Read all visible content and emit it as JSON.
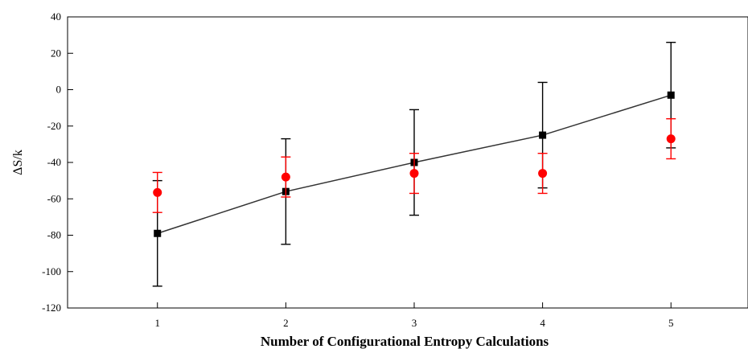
{
  "chart_data": {
    "type": "scatter",
    "xlabel": "Number of Configurational Entropy Calculations",
    "ylabel": "ΔS/k",
    "xlim": [
      0.3,
      5.6
    ],
    "ylim": [
      -120,
      40
    ],
    "xticks": [
      1,
      2,
      3,
      4,
      5
    ],
    "yticks": [
      40,
      20,
      0,
      -20,
      -40,
      -60,
      -80,
      -100,
      -120
    ],
    "grid": false,
    "series": [
      {
        "marker": "square",
        "line": true,
        "color": "#000000",
        "x": [
          1,
          2,
          3,
          4,
          5
        ],
        "y": [
          -79,
          -56,
          -40,
          -25,
          -3
        ],
        "err": [
          29,
          29,
          29,
          29,
          29
        ]
      },
      {
        "marker": "circle",
        "line": false,
        "color": "#ff0000",
        "x": [
          1,
          2,
          3,
          4,
          5
        ],
        "y": [
          -56.5,
          -48,
          -46,
          -46,
          -27
        ],
        "err": [
          11,
          11,
          11,
          11,
          11
        ]
      }
    ]
  }
}
